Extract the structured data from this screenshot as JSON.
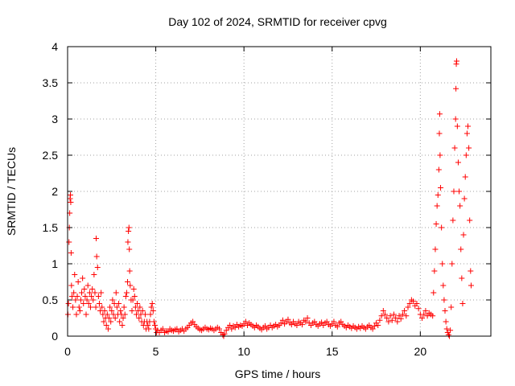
{
  "chart_data": {
    "type": "scatter",
    "title": "Day 102 of 2024, SRMTID for receiver cpvg",
    "xlabel": "GPS time / hours",
    "ylabel": "SRMTID / TECUs",
    "xlim": [
      0,
      24
    ],
    "ylim": [
      0,
      4
    ],
    "xticks": [
      0,
      5,
      10,
      15,
      20
    ],
    "xtick_labels": [
      "0",
      "5",
      "10",
      "15",
      "20"
    ],
    "yticks": [
      0,
      0.5,
      1,
      1.5,
      2,
      2.5,
      3,
      3.5,
      4
    ],
    "ytick_labels": [
      "0",
      "0.5",
      "1",
      "1.5",
      "2",
      "2.5",
      "3",
      "3.5",
      "4"
    ],
    "grid": true,
    "marker": "+",
    "color": "#ff0000",
    "series": [
      {
        "name": "SRMTID",
        "points": [
          [
            0.02,
            0.3
          ],
          [
            0.05,
            0.45
          ],
          [
            0.08,
            1.3
          ],
          [
            0.1,
            1.5
          ],
          [
            0.12,
            1.7
          ],
          [
            0.14,
            1.9
          ],
          [
            0.16,
            1.95
          ],
          [
            0.18,
            1.85
          ],
          [
            0.2,
            1.15
          ],
          [
            0.22,
            0.7
          ],
          [
            0.25,
            0.55
          ],
          [
            0.3,
            0.4
          ],
          [
            0.35,
            0.6
          ],
          [
            0.4,
            0.85
          ],
          [
            0.45,
            0.5
          ],
          [
            0.5,
            0.3
          ],
          [
            0.55,
            0.55
          ],
          [
            0.6,
            0.75
          ],
          [
            0.65,
            0.4
          ],
          [
            0.7,
            0.35
          ],
          [
            0.75,
            0.5
          ],
          [
            0.8,
            0.6
          ],
          [
            0.85,
            0.8
          ],
          [
            0.9,
            0.45
          ],
          [
            0.95,
            0.65
          ],
          [
            1.0,
            0.55
          ],
          [
            1.05,
            0.3
          ],
          [
            1.1,
            0.5
          ],
          [
            1.15,
            0.7
          ],
          [
            1.2,
            0.45
          ],
          [
            1.25,
            0.6
          ],
          [
            1.3,
            0.4
          ],
          [
            1.35,
            0.55
          ],
          [
            1.4,
            0.65
          ],
          [
            1.45,
            0.5
          ],
          [
            1.5,
            0.85
          ],
          [
            1.55,
            0.6
          ],
          [
            1.6,
            0.4
          ],
          [
            1.62,
            1.35
          ],
          [
            1.65,
            1.1
          ],
          [
            1.7,
            0.95
          ],
          [
            1.75,
            0.55
          ],
          [
            1.8,
            0.45
          ],
          [
            1.85,
            0.35
          ],
          [
            1.9,
            0.6
          ],
          [
            1.95,
            0.4
          ],
          [
            2.0,
            0.3
          ],
          [
            2.05,
            0.2
          ],
          [
            2.1,
            0.35
          ],
          [
            2.15,
            0.25
          ],
          [
            2.2,
            0.15
          ],
          [
            2.25,
            0.3
          ],
          [
            2.3,
            0.1
          ],
          [
            2.35,
            0.25
          ],
          [
            2.4,
            0.4
          ],
          [
            2.45,
            0.2
          ],
          [
            2.5,
            0.35
          ],
          [
            2.55,
            0.5
          ],
          [
            2.6,
            0.3
          ],
          [
            2.65,
            0.45
          ],
          [
            2.7,
            0.25
          ],
          [
            2.75,
            0.6
          ],
          [
            2.8,
            0.4
          ],
          [
            2.85,
            0.3
          ],
          [
            2.9,
            0.45
          ],
          [
            2.95,
            0.2
          ],
          [
            3.0,
            0.35
          ],
          [
            3.05,
            0.3
          ],
          [
            3.1,
            0.15
          ],
          [
            3.15,
            0.25
          ],
          [
            3.2,
            0.4
          ],
          [
            3.25,
            0.3
          ],
          [
            3.3,
            0.55
          ],
          [
            3.35,
            0.6
          ],
          [
            3.4,
            0.75
          ],
          [
            3.42,
            1.3
          ],
          [
            3.45,
            1.45
          ],
          [
            3.48,
            1.5
          ],
          [
            3.5,
            1.2
          ],
          [
            3.52,
            0.9
          ],
          [
            3.55,
            0.7
          ],
          [
            3.6,
            0.5
          ],
          [
            3.65,
            0.35
          ],
          [
            3.7,
            0.5
          ],
          [
            3.75,
            0.65
          ],
          [
            3.8,
            0.55
          ],
          [
            3.85,
            0.4
          ],
          [
            3.9,
            0.3
          ],
          [
            3.95,
            0.45
          ],
          [
            4.0,
            0.35
          ],
          [
            4.05,
            0.25
          ],
          [
            4.1,
            0.4
          ],
          [
            4.15,
            0.3
          ],
          [
            4.2,
            0.2
          ],
          [
            4.25,
            0.35
          ],
          [
            4.3,
            0.15
          ],
          [
            4.35,
            0.2
          ],
          [
            4.4,
            0.3
          ],
          [
            4.45,
            0.1
          ],
          [
            4.5,
            0.2
          ],
          [
            4.55,
            0.15
          ],
          [
            4.6,
            0.1
          ],
          [
            4.65,
            0.2
          ],
          [
            4.7,
            0.3
          ],
          [
            4.75,
            0.4
          ],
          [
            4.8,
            0.45
          ],
          [
            4.85,
            0.35
          ],
          [
            4.9,
            0.2
          ],
          [
            4.95,
            0.15
          ],
          [
            5.0,
            0.1
          ],
          [
            5.05,
            0.05
          ],
          [
            5.1,
            0.08
          ],
          [
            5.2,
            0.05
          ],
          [
            5.3,
            0.08
          ],
          [
            5.4,
            0.1
          ],
          [
            5.5,
            0.05
          ],
          [
            5.6,
            0.07
          ],
          [
            5.7,
            0.06
          ],
          [
            5.8,
            0.1
          ],
          [
            5.9,
            0.08
          ],
          [
            6.0,
            0.07
          ],
          [
            6.1,
            0.09
          ],
          [
            6.2,
            0.1
          ],
          [
            6.3,
            0.06
          ],
          [
            6.4,
            0.08
          ],
          [
            6.5,
            0.1
          ],
          [
            6.6,
            0.07
          ],
          [
            6.7,
            0.1
          ],
          [
            6.8,
            0.12
          ],
          [
            6.9,
            0.15
          ],
          [
            7.0,
            0.18
          ],
          [
            7.1,
            0.2
          ],
          [
            7.2,
            0.16
          ],
          [
            7.3,
            0.13
          ],
          [
            7.4,
            0.11
          ],
          [
            7.5,
            0.09
          ],
          [
            7.6,
            0.08
          ],
          [
            7.7,
            0.1
          ],
          [
            7.8,
            0.12
          ],
          [
            7.9,
            0.1
          ],
          [
            8.0,
            0.09
          ],
          [
            8.1,
            0.11
          ],
          [
            8.2,
            0.1
          ],
          [
            8.3,
            0.08
          ],
          [
            8.4,
            0.1
          ],
          [
            8.5,
            0.12
          ],
          [
            8.6,
            0.1
          ],
          [
            8.7,
            0.05
          ],
          [
            8.8,
            0.02
          ],
          [
            8.85,
            0.0
          ],
          [
            8.9,
            0.03
          ],
          [
            9.0,
            0.08
          ],
          [
            9.1,
            0.12
          ],
          [
            9.2,
            0.15
          ],
          [
            9.3,
            0.1
          ],
          [
            9.4,
            0.14
          ],
          [
            9.5,
            0.12
          ],
          [
            9.6,
            0.16
          ],
          [
            9.7,
            0.13
          ],
          [
            9.8,
            0.15
          ],
          [
            9.9,
            0.14
          ],
          [
            10.0,
            0.17
          ],
          [
            10.1,
            0.2
          ],
          [
            10.2,
            0.15
          ],
          [
            10.3,
            0.18
          ],
          [
            10.4,
            0.16
          ],
          [
            10.5,
            0.14
          ],
          [
            10.6,
            0.12
          ],
          [
            10.7,
            0.15
          ],
          [
            10.8,
            0.13
          ],
          [
            10.9,
            0.11
          ],
          [
            11.0,
            0.09
          ],
          [
            11.1,
            0.12
          ],
          [
            11.2,
            0.14
          ],
          [
            11.3,
            0.1
          ],
          [
            11.4,
            0.12
          ],
          [
            11.5,
            0.15
          ],
          [
            11.6,
            0.12
          ],
          [
            11.7,
            0.14
          ],
          [
            11.8,
            0.16
          ],
          [
            11.9,
            0.13
          ],
          [
            12.0,
            0.15
          ],
          [
            12.1,
            0.18
          ],
          [
            12.2,
            0.22
          ],
          [
            12.3,
            0.17
          ],
          [
            12.4,
            0.2
          ],
          [
            12.5,
            0.23
          ],
          [
            12.6,
            0.18
          ],
          [
            12.7,
            0.16
          ],
          [
            12.8,
            0.2
          ],
          [
            12.9,
            0.17
          ],
          [
            13.0,
            0.15
          ],
          [
            13.1,
            0.2
          ],
          [
            13.2,
            0.18
          ],
          [
            13.3,
            0.16
          ],
          [
            13.4,
            0.22
          ],
          [
            13.5,
            0.2
          ],
          [
            13.6,
            0.25
          ],
          [
            13.7,
            0.18
          ],
          [
            13.8,
            0.15
          ],
          [
            13.9,
            0.18
          ],
          [
            14.0,
            0.2
          ],
          [
            14.1,
            0.16
          ],
          [
            14.2,
            0.14
          ],
          [
            14.3,
            0.17
          ],
          [
            14.4,
            0.19
          ],
          [
            14.5,
            0.15
          ],
          [
            14.6,
            0.18
          ],
          [
            14.7,
            0.2
          ],
          [
            14.8,
            0.16
          ],
          [
            14.9,
            0.14
          ],
          [
            15.0,
            0.17
          ],
          [
            15.1,
            0.2
          ],
          [
            15.2,
            0.15
          ],
          [
            15.3,
            0.13
          ],
          [
            15.4,
            0.18
          ],
          [
            15.5,
            0.2
          ],
          [
            15.6,
            0.16
          ],
          [
            15.7,
            0.14
          ],
          [
            15.8,
            0.12
          ],
          [
            15.9,
            0.15
          ],
          [
            16.0,
            0.13
          ],
          [
            16.1,
            0.11
          ],
          [
            16.2,
            0.14
          ],
          [
            16.3,
            0.12
          ],
          [
            16.4,
            0.1
          ],
          [
            16.5,
            0.13
          ],
          [
            16.6,
            0.11
          ],
          [
            16.7,
            0.14
          ],
          [
            16.8,
            0.12
          ],
          [
            16.9,
            0.1
          ],
          [
            17.0,
            0.13
          ],
          [
            17.1,
            0.15
          ],
          [
            17.2,
            0.12
          ],
          [
            17.3,
            0.1
          ],
          [
            17.4,
            0.14
          ],
          [
            17.5,
            0.18
          ],
          [
            17.6,
            0.15
          ],
          [
            17.7,
            0.22
          ],
          [
            17.8,
            0.28
          ],
          [
            17.9,
            0.35
          ],
          [
            18.0,
            0.3
          ],
          [
            18.1,
            0.25
          ],
          [
            18.2,
            0.2
          ],
          [
            18.3,
            0.28
          ],
          [
            18.4,
            0.22
          ],
          [
            18.5,
            0.3
          ],
          [
            18.6,
            0.25
          ],
          [
            18.7,
            0.2
          ],
          [
            18.8,
            0.28
          ],
          [
            18.9,
            0.24
          ],
          [
            19.0,
            0.3
          ],
          [
            19.1,
            0.35
          ],
          [
            19.2,
            0.28
          ],
          [
            19.3,
            0.4
          ],
          [
            19.4,
            0.45
          ],
          [
            19.5,
            0.5
          ],
          [
            19.6,
            0.48
          ],
          [
            19.7,
            0.42
          ],
          [
            19.8,
            0.45
          ],
          [
            19.9,
            0.38
          ],
          [
            20.0,
            0.3
          ],
          [
            20.1,
            0.25
          ],
          [
            20.2,
            0.3
          ],
          [
            20.3,
            0.35
          ],
          [
            20.4,
            0.28
          ],
          [
            20.5,
            0.32
          ],
          [
            20.6,
            0.3
          ],
          [
            20.7,
            0.28
          ],
          [
            20.75,
            0.6
          ],
          [
            20.8,
            0.9
          ],
          [
            20.85,
            1.2
          ],
          [
            20.9,
            1.55
          ],
          [
            20.95,
            1.8
          ],
          [
            21.0,
            1.95
          ],
          [
            21.05,
            2.3
          ],
          [
            21.08,
            2.8
          ],
          [
            21.1,
            3.07
          ],
          [
            21.12,
            2.5
          ],
          [
            21.15,
            2.05
          ],
          [
            21.2,
            1.5
          ],
          [
            21.25,
            1.0
          ],
          [
            21.3,
            0.7
          ],
          [
            21.35,
            0.5
          ],
          [
            21.4,
            0.35
          ],
          [
            21.45,
            0.2
          ],
          [
            21.5,
            0.1
          ],
          [
            21.55,
            0.05
          ],
          [
            21.6,
            0.02
          ],
          [
            21.65,
            0.0
          ],
          [
            21.7,
            0.08
          ],
          [
            21.75,
            0.4
          ],
          [
            21.8,
            1.0
          ],
          [
            21.85,
            1.6
          ],
          [
            21.9,
            2.0
          ],
          [
            21.95,
            2.6
          ],
          [
            22.0,
            3.0
          ],
          [
            22.02,
            3.42
          ],
          [
            22.04,
            3.76
          ],
          [
            22.06,
            3.8
          ],
          [
            22.1,
            2.9
          ],
          [
            22.15,
            2.4
          ],
          [
            22.2,
            2.0
          ],
          [
            22.25,
            1.8
          ],
          [
            22.3,
            1.2
          ],
          [
            22.35,
            0.8
          ],
          [
            22.4,
            0.45
          ],
          [
            22.45,
            1.4
          ],
          [
            22.5,
            1.9
          ],
          [
            22.55,
            2.2
          ],
          [
            22.6,
            2.5
          ],
          [
            22.65,
            2.8
          ],
          [
            22.7,
            2.9
          ],
          [
            22.75,
            2.6
          ],
          [
            22.8,
            1.6
          ],
          [
            22.85,
            0.9
          ],
          [
            22.88,
            0.7
          ]
        ]
      }
    ]
  }
}
